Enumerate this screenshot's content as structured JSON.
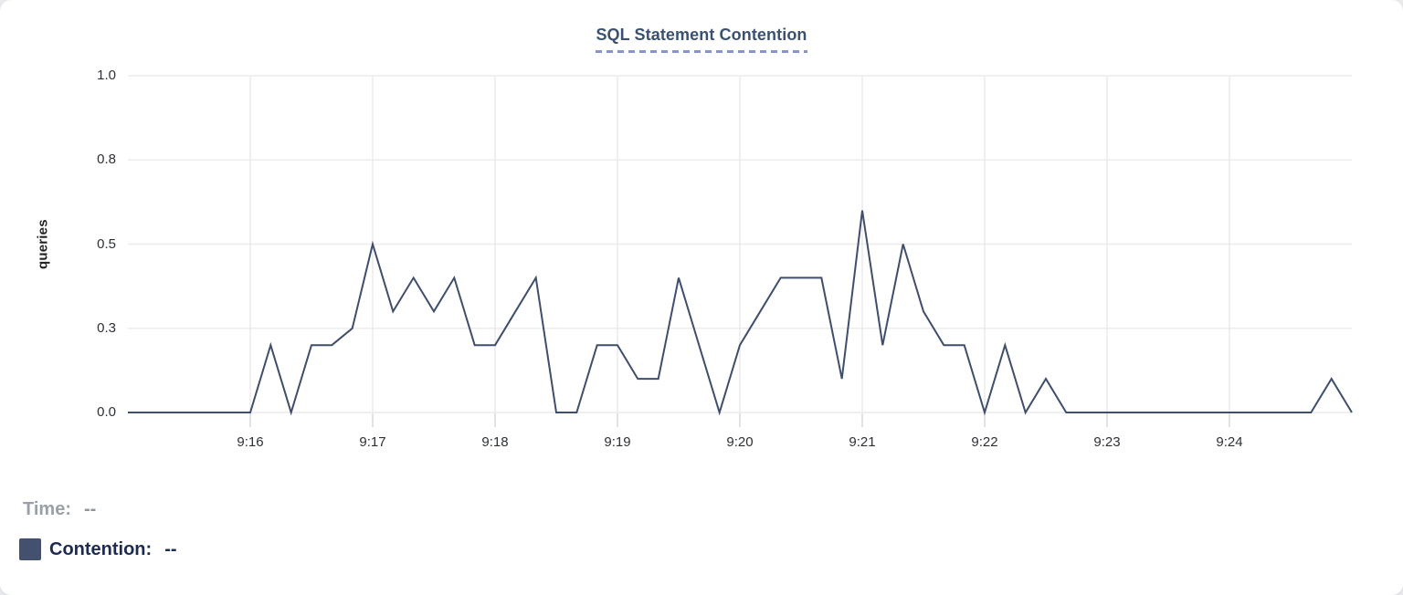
{
  "chart_data": {
    "type": "line",
    "title": "SQL Statement Contention",
    "ylabel": "queries",
    "xlabel": "",
    "ylim": [
      0,
      1
    ],
    "grid": true,
    "legend_position": "bottom-left",
    "y_ticks": [
      {
        "v": 0,
        "label": "0.0"
      },
      {
        "v": 0.25,
        "label": "0.3"
      },
      {
        "v": 0.5,
        "label": "0.5"
      },
      {
        "v": 0.75,
        "label": "0.8"
      },
      {
        "v": 1,
        "label": "1.0"
      }
    ],
    "x_ticks": [
      {
        "minute": 1,
        "label": "9:16"
      },
      {
        "minute": 2,
        "label": "9:17"
      },
      {
        "minute": 3,
        "label": "9:18"
      },
      {
        "minute": 4,
        "label": "9:19"
      },
      {
        "minute": 5,
        "label": "9:20"
      },
      {
        "minute": 6,
        "label": "9:21"
      },
      {
        "minute": 7,
        "label": "9:22"
      },
      {
        "minute": 8,
        "label": "9:23"
      },
      {
        "minute": 9,
        "label": "9:24"
      }
    ],
    "x_domain": {
      "start": "9:15:00",
      "end": "9:25:00",
      "total_seconds": 600
    },
    "series": [
      {
        "name": "Contention",
        "unit": "queries",
        "color": "#3f4e6c",
        "sample_interval_seconds": 10,
        "x_seconds": [
          0,
          10,
          20,
          30,
          40,
          50,
          60,
          70,
          80,
          90,
          100,
          110,
          120,
          130,
          140,
          150,
          160,
          170,
          180,
          190,
          200,
          210,
          220,
          230,
          240,
          250,
          260,
          270,
          280,
          290,
          300,
          310,
          320,
          330,
          340,
          350,
          360,
          370,
          380,
          390,
          400,
          410,
          420,
          430,
          440,
          450,
          460,
          470,
          480,
          490,
          500,
          510,
          520,
          530,
          540,
          550,
          560,
          570,
          580,
          590,
          600
        ],
        "values": [
          0,
          0,
          0,
          0,
          0,
          0,
          0,
          0.2,
          0,
          0.2,
          0.2,
          0.25,
          0.5,
          0.3,
          0.4,
          0.3,
          0.4,
          0.2,
          0.2,
          0.3,
          0.4,
          0,
          0,
          0.2,
          0.2,
          0.1,
          0.1,
          0.4,
          0.2,
          0,
          0.2,
          0.3,
          0.4,
          0.4,
          0.4,
          0.1,
          0.6,
          0.2,
          0.5,
          0.3,
          0.2,
          0.2,
          0,
          0.2,
          0,
          0.1,
          0,
          0,
          0,
          0,
          0,
          0,
          0,
          0,
          0,
          0,
          0,
          0,
          0,
          0.1,
          0
        ]
      }
    ]
  },
  "legend": {
    "time_label": "Time:",
    "time_value": "--",
    "contention_label": "Contention:",
    "contention_value": "--",
    "swatch_color": "#44516e"
  },
  "colors": {
    "title": "#3a5172",
    "title_underline": "#8b93cb",
    "line": "#3f4e6c",
    "grid": "#ececee",
    "axis_tick_mark": "#d7d9dd",
    "axis_text": "#2d3036",
    "time_text": "#9aa0a8",
    "contention_text": "#1d2b52",
    "card_bg": "#ffffff",
    "page_bg": "#e9ebee"
  }
}
